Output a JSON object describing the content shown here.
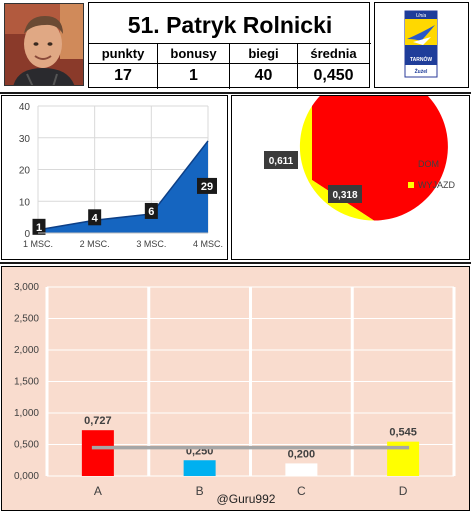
{
  "player": {
    "title": "51. Patryk Rolnicki",
    "stats": [
      {
        "label": "punkty",
        "value": "17"
      },
      {
        "label": "bonusy",
        "value": "1"
      },
      {
        "label": "biegi",
        "value": "40"
      },
      {
        "label": "średnia",
        "value": "0,450"
      }
    ]
  },
  "logo": {
    "lines": [
      "Unia",
      "TARNÓW",
      "Żużel"
    ]
  },
  "colors": {
    "line_fill": "#1565c0",
    "dom": "#ff0000",
    "wyjazd": "#ffff00",
    "bar_bg": "#f9dcce"
  },
  "chart_data": [
    {
      "type": "area",
      "categories": [
        "1 MSC.",
        "2 MSC.",
        "3 MSC.",
        "4 MSC."
      ],
      "values": [
        1,
        4,
        6,
        29
      ],
      "value_labels": [
        "1",
        "4",
        "6",
        "29"
      ],
      "ylim": [
        0,
        40
      ],
      "yticks": [
        "0",
        "10",
        "20",
        "30",
        "40"
      ],
      "grid": true
    },
    {
      "type": "pie",
      "slices": [
        {
          "name": "DOM",
          "value": 0.611,
          "label": "0,611",
          "color": "#ff0000"
        },
        {
          "name": "WYJAZD",
          "value": 0.318,
          "label": "0,318",
          "color": "#ffff00"
        }
      ],
      "legend_position": "right"
    },
    {
      "type": "bar",
      "categories": [
        "A",
        "B",
        "C",
        "D"
      ],
      "values": [
        0.727,
        0.25,
        0.2,
        0.545
      ],
      "value_labels": [
        "0,727",
        "0,250",
        "0,200",
        "0,545"
      ],
      "colors": [
        "#ff0000",
        "#00b0f0",
        "#ffffff",
        "#ffff00"
      ],
      "average_line": 0.45,
      "ylim": [
        0,
        3
      ],
      "yticks": [
        "0,000",
        "0,500",
        "1,000",
        "1,500",
        "2,000",
        "2,500",
        "3,000"
      ],
      "grid": true,
      "watermark": "@Guru992"
    }
  ]
}
